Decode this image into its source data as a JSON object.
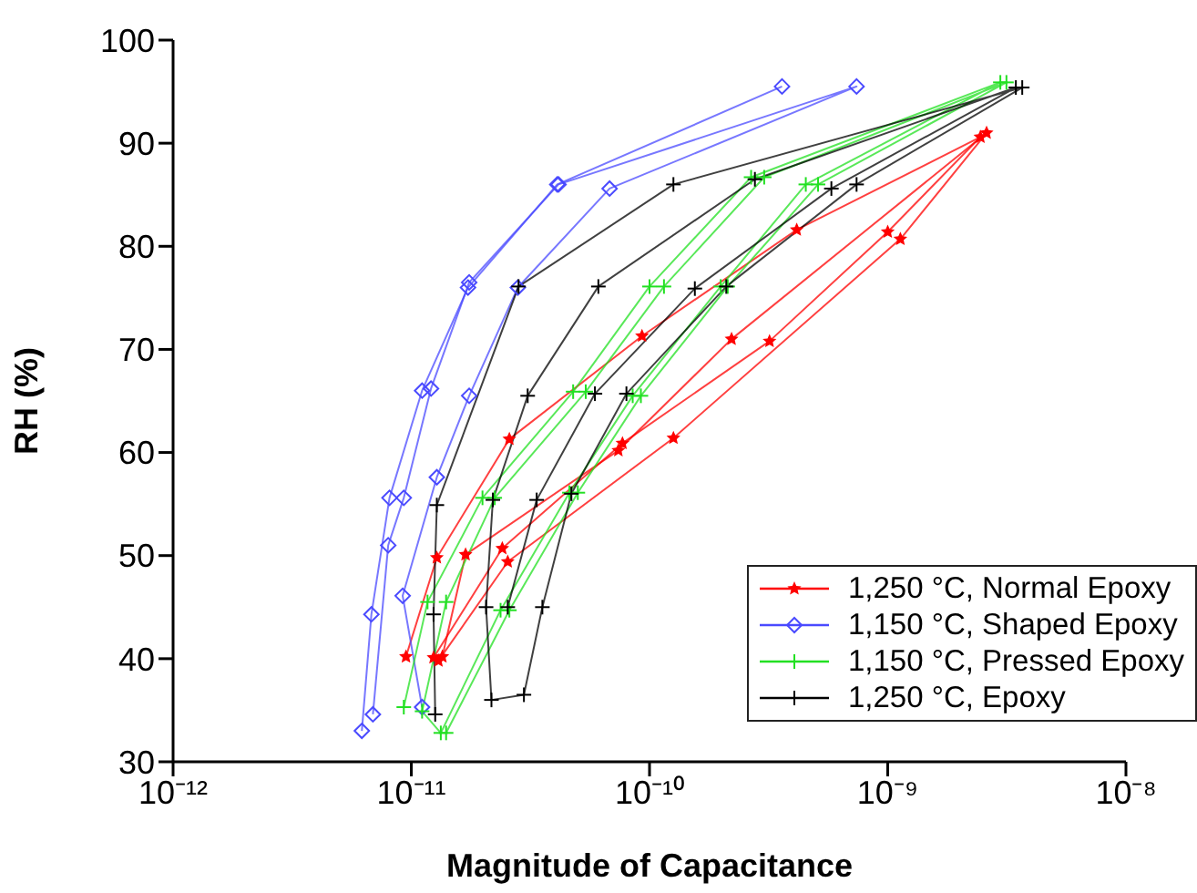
{
  "chart_data": {
    "type": "line",
    "xlabel": "Magnitude of Capacitance",
    "ylabel": "RH (%)",
    "log": "x",
    "xlim": [
      1e-12,
      1e-08
    ],
    "xticks": [
      {
        "value": 1e-12,
        "label": "10⁻¹²"
      },
      {
        "value": 1e-11,
        "label": "10⁻¹¹"
      },
      {
        "value": 1e-10,
        "label": "10⁻¹⁰"
      },
      {
        "value": 1e-09,
        "label": "10⁻⁹"
      },
      {
        "value": 1e-08,
        "label": "10⁻⁸"
      }
    ],
    "ylim": [
      30,
      100
    ],
    "yticks": [
      30,
      40,
      50,
      60,
      70,
      80,
      90,
      100
    ],
    "grid": false,
    "legend": "bottom right",
    "line_style": "solid",
    "series": [
      {
        "name": "1,250 °C, Normal Epoxy",
        "color": "#ff0000",
        "marker": "star",
        "x": [
          9.5e-12,
          1.28e-11,
          2.58e-11,
          9.3e-11,
          4.15e-10,
          2.45e-09,
          1e-09,
          3.19e-10,
          7.7e-11,
          2.41e-11,
          1.24e-11
        ],
        "values": [
          40.2,
          49.8,
          61.3,
          71.3,
          81.6,
          90.6,
          81.4,
          70.8,
          60.9,
          50.7,
          40.1
        ]
      },
      {
        "color": "#ff0000",
        "marker": "star",
        "x": [
          1.35e-11,
          1.69e-11,
          7.4e-11,
          2.21e-10,
          2.6e-09,
          1.13e-09,
          1.26e-10,
          2.54e-11,
          1.3e-11
        ],
        "values": [
          40.2,
          50.1,
          60.2,
          71.0,
          91.0,
          80.7,
          61.4,
          49.4,
          39.8
        ]
      },
      {
        "name": "1,150 °C, Shaped Epoxy",
        "color": "#4a4aff",
        "marker": "diamond",
        "x": [
          6.2e-12,
          6.8e-12,
          8.1e-12,
          1.11e-11,
          1.73e-11,
          4.1e-11,
          3.6e-10
        ],
        "values": [
          33.0,
          44.3,
          55.6,
          66.0,
          76.0,
          86.0,
          95.5
        ]
      },
      {
        "color": "#4a4aff",
        "marker": "diamond",
        "x": [
          6.9e-12,
          8e-12,
          9.3e-12,
          1.21e-11,
          1.75e-11,
          4.15e-11,
          7.4e-10,
          6.8e-11,
          2.8e-11,
          1.75e-11,
          1.28e-11,
          9.2e-12,
          1.11e-11
        ],
        "values": [
          34.6,
          51.0,
          55.6,
          66.2,
          76.5,
          86.0,
          95.5,
          85.6,
          76.0,
          65.5,
          57.6,
          46.1,
          35.3
        ]
      },
      {
        "name": "1,150 °C, Pressed Epoxy",
        "color": "#22e022",
        "marker": "cross",
        "x": [
          9.3e-12,
          1.17e-11,
          1.99e-11,
          4.78e-11,
          1e-10,
          2.67e-10,
          2.97e-09,
          4.53e-10,
          1.99e-10,
          8.5e-11,
          4.61e-11,
          2.37e-11,
          1.33e-11,
          1.11e-11,
          1.4e-11,
          2.24e-11,
          5.4e-11,
          1.15e-10,
          3.03e-10,
          3.15e-09,
          5.1e-10,
          2.13e-10,
          9.2e-11,
          5e-11,
          2.58e-11,
          1.4e-11
        ],
        "values": [
          35.3,
          45.5,
          55.6,
          65.9,
          76.1,
          86.7,
          95.9,
          86.0,
          76.1,
          65.5,
          56.1,
          44.7,
          32.8,
          34.9,
          45.5,
          55.6,
          65.9,
          76.1,
          86.7,
          95.9,
          86.0,
          76.1,
          65.5,
          56.1,
          44.7,
          32.8
        ]
      },
      {
        "name": "1,250 °C, Epoxy",
        "color": "#000000",
        "marker": "cross",
        "x": [
          1.26e-11,
          1.24e-11,
          1.28e-11,
          2.82e-11,
          1.26e-10,
          3.67e-09,
          7.4e-10,
          2.1e-10,
          8e-11,
          4.7e-11,
          3.55e-11,
          2.97e-11,
          2.17e-11,
          2.06e-11,
          2.2e-11,
          3.08e-11,
          6.1e-11,
          2.77e-10,
          3.45e-09,
          5.8e-10,
          1.55e-10,
          5.9e-11,
          3.36e-11,
          2.54e-11
        ],
        "values": [
          34.6,
          44.3,
          54.9,
          76.1,
          86.0,
          95.4,
          86.0,
          76.1,
          65.7,
          56.0,
          45.0,
          36.5,
          36.0,
          45.0,
          55.4,
          65.5,
          76.1,
          86.5,
          95.4,
          85.6,
          75.9,
          65.7,
          55.4,
          45.0
        ]
      }
    ]
  }
}
